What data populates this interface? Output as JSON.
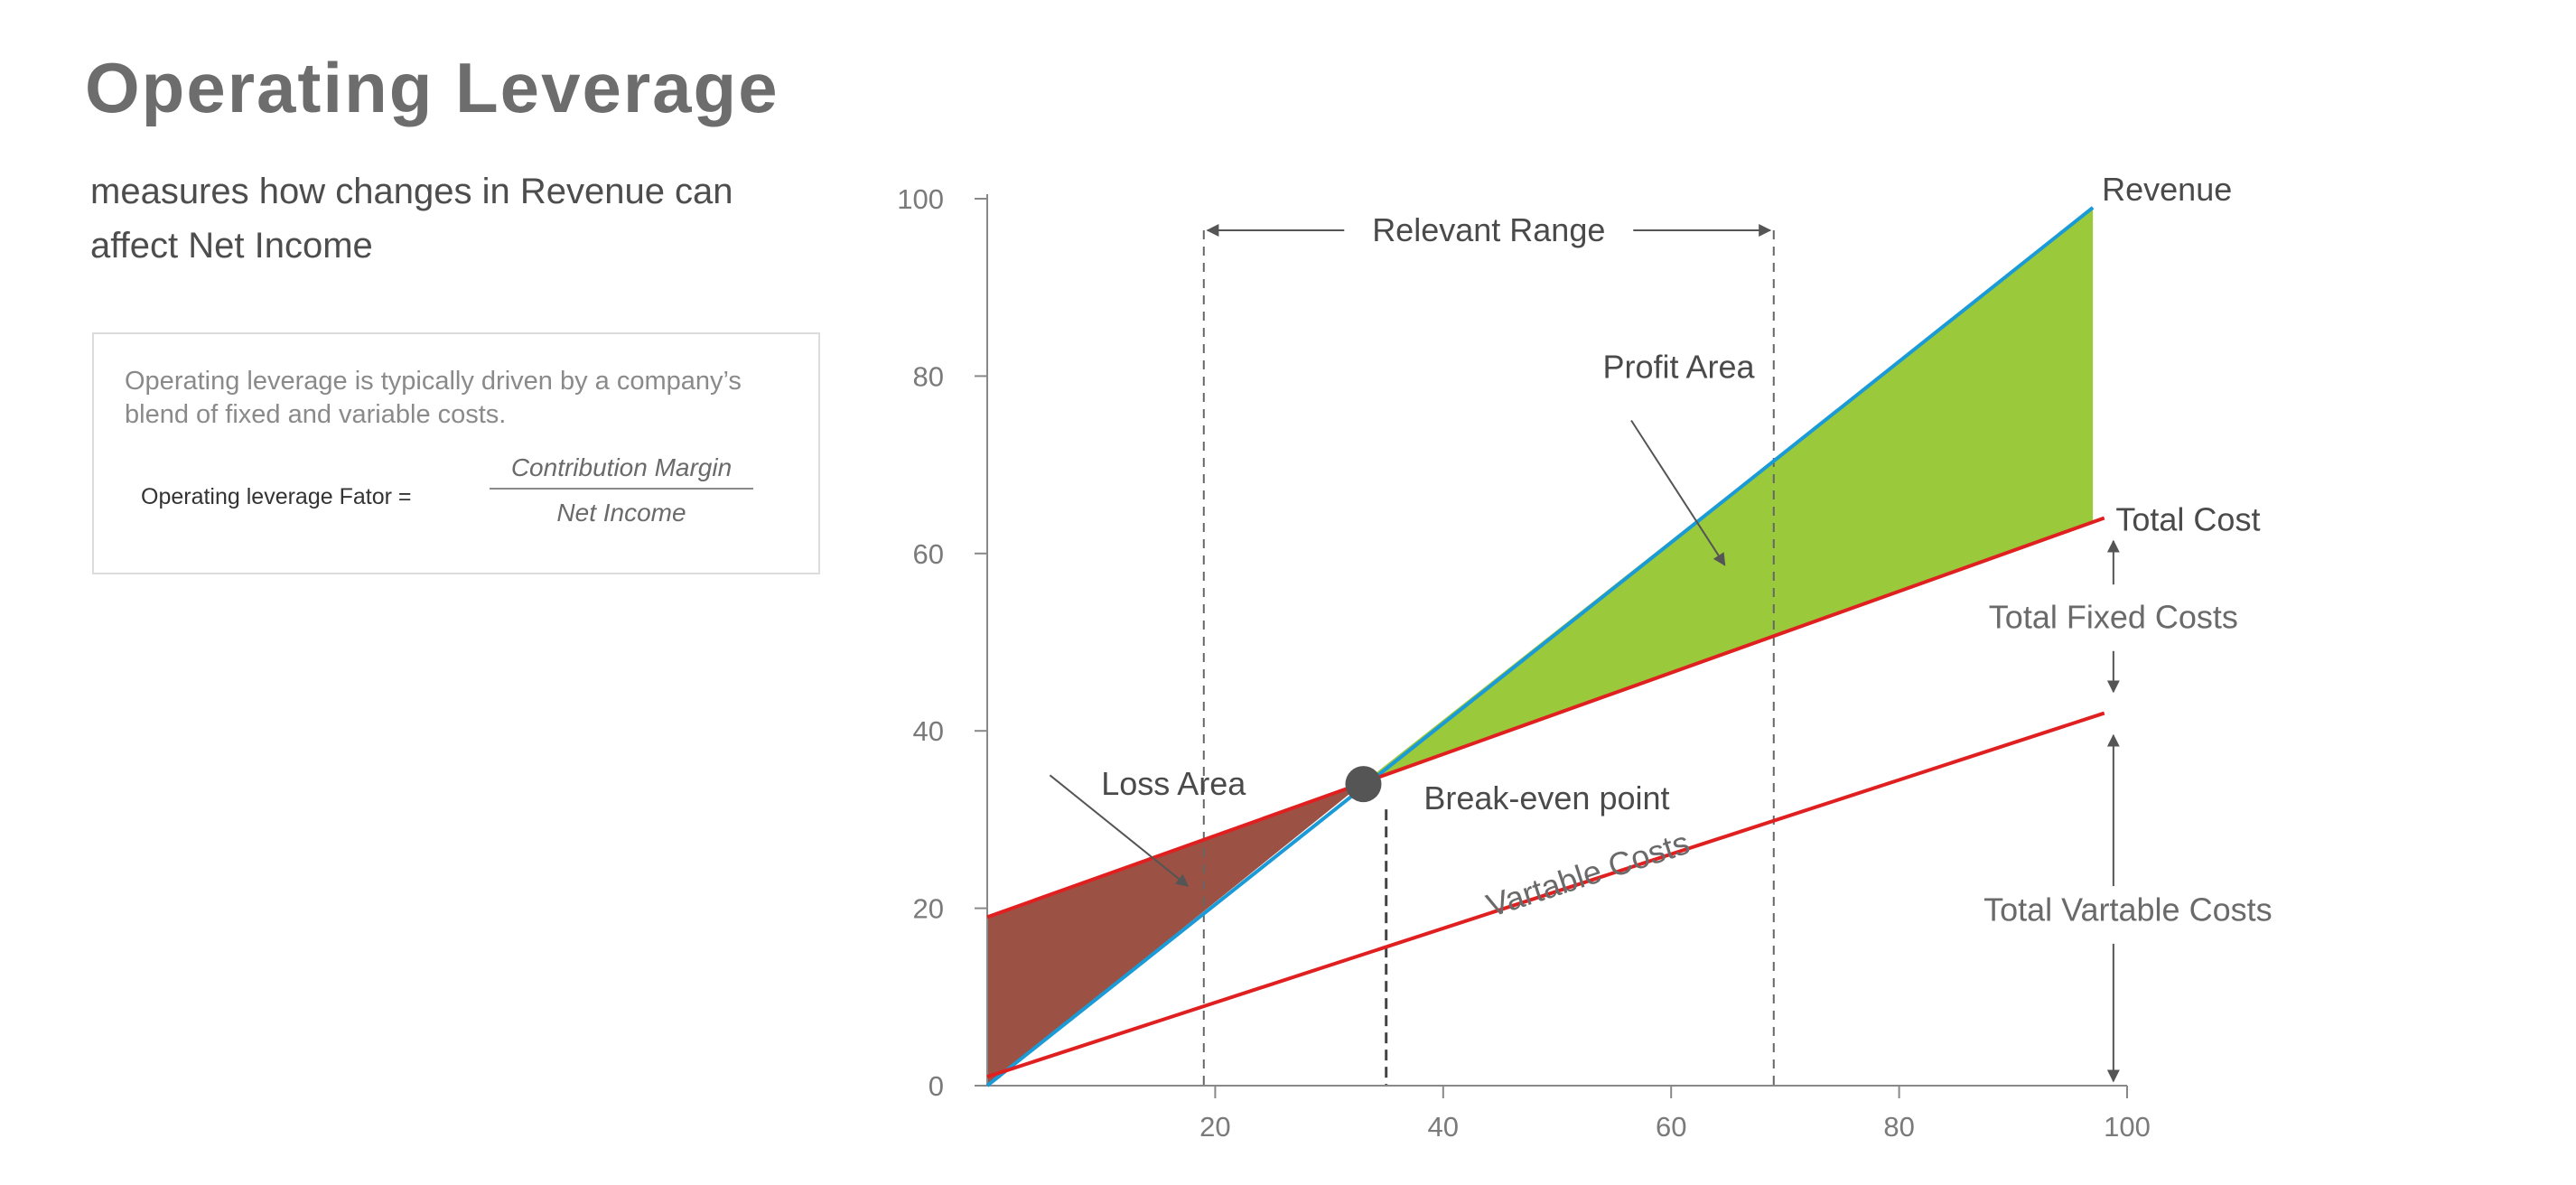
{
  "title": "Operating Leverage",
  "subtitle": "measures how changes in Revenue can affect Net Income",
  "info": {
    "text": "Operating leverage is typically driven by a company’s blend of fixed and variable costs.",
    "formula_label": "Operating leverage Fator =",
    "numerator": "Contribution Margin",
    "denominator": "Net Income"
  },
  "chart_data": {
    "type": "line",
    "xlim": [
      0,
      100
    ],
    "ylim": [
      0,
      100
    ],
    "x_ticks": [
      20,
      40,
      60,
      80,
      100
    ],
    "y_ticks": [
      0,
      20,
      40,
      60,
      80,
      100
    ],
    "grid": false,
    "series": [
      {
        "name": "Revenue",
        "color": "#1a9ad6",
        "points": [
          [
            0,
            0
          ],
          [
            97,
            99
          ]
        ]
      },
      {
        "name": "Total Cost",
        "color": "#e02020",
        "points": [
          [
            0,
            19
          ],
          [
            98,
            64
          ]
        ]
      },
      {
        "name": "Vartable Costs",
        "points": [
          [
            0,
            1
          ],
          [
            98,
            42
          ]
        ],
        "color": "#e02020"
      }
    ],
    "areas": [
      {
        "name": "Loss Area",
        "color": "#9b5244",
        "from_x": 0,
        "to_x": 33
      },
      {
        "name": "Profit Area",
        "color": "#9aca3c",
        "from_x": 33,
        "to_x": 97
      }
    ],
    "break_even": {
      "label": "Break-even point",
      "x": 33,
      "y": 34
    },
    "relevant_range": {
      "label": "Relevant Range",
      "from": 19,
      "to": 69
    },
    "break_even_drop_x": 35,
    "annotations": {
      "profit_area": "Profit Area",
      "loss_area": "Loss Area",
      "total_fixed_costs": "Total Fixed Costs",
      "total_variable_costs": "Total Vartable Costs"
    }
  }
}
